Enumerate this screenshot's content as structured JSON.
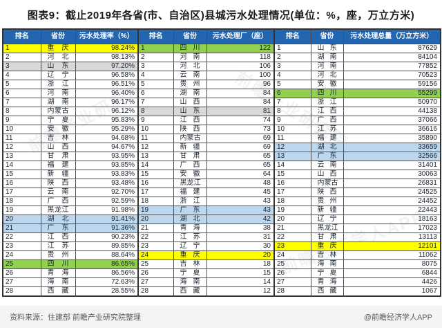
{
  "title": "图表9：截止2019年各省(市、自治区)县城污水处理情况(单位：%，座，万立方米)",
  "columns": {
    "rank": "排名",
    "province": "省份"
  },
  "chart_data": {
    "type": "table",
    "title": "截止2019年各省(市、自治区)县城污水处理情况",
    "units": "%，座，万立方米",
    "tables": {
      "rate": {
        "label": "污水处理率（%）",
        "rows": [
          {
            "rank": 1,
            "province": "重庆",
            "value": "98.24%",
            "hl": "yellow"
          },
          {
            "rank": 2,
            "province": "河北",
            "value": "98.13%"
          },
          {
            "rank": 3,
            "province": "山东",
            "value": "97.20%",
            "hl": "gray"
          },
          {
            "rank": 4,
            "province": "辽宁",
            "value": "96.58%"
          },
          {
            "rank": 5,
            "province": "浙江",
            "value": "96.51%"
          },
          {
            "rank": 6,
            "province": "河南",
            "value": "96.40%"
          },
          {
            "rank": 7,
            "province": "湖南",
            "value": "96.17%"
          },
          {
            "rank": 8,
            "province": "内蒙古",
            "value": "96.12%"
          },
          {
            "rank": 9,
            "province": "宁夏",
            "value": "95.83%"
          },
          {
            "rank": 10,
            "province": "安徽",
            "value": "95.29%"
          },
          {
            "rank": 11,
            "province": "吉林",
            "value": "94.68%"
          },
          {
            "rank": 12,
            "province": "山西",
            "value": "94.67%"
          },
          {
            "rank": 13,
            "province": "甘肃",
            "value": "93.95%"
          },
          {
            "rank": 14,
            "province": "福建",
            "value": "93.85%"
          },
          {
            "rank": 15,
            "province": "新疆",
            "value": "93.83%"
          },
          {
            "rank": 16,
            "province": "陕西",
            "value": "93.48%"
          },
          {
            "rank": 17,
            "province": "云南",
            "value": "92.70%"
          },
          {
            "rank": 18,
            "province": "广西",
            "value": "92.59%"
          },
          {
            "rank": 19,
            "province": "黑龙江",
            "value": "91.98%"
          },
          {
            "rank": 20,
            "province": "湖北",
            "value": "91.41%",
            "hl": "blue"
          },
          {
            "rank": 21,
            "province": "广东",
            "value": "91.36%",
            "hl": "blue"
          },
          {
            "rank": 22,
            "province": "江西",
            "value": "90.23%"
          },
          {
            "rank": 23,
            "province": "江苏",
            "value": "89.85%"
          },
          {
            "rank": 24,
            "province": "贵州",
            "value": "88.64%"
          },
          {
            "rank": 25,
            "province": "四川",
            "value": "86.65%",
            "hl": "green"
          },
          {
            "rank": 26,
            "province": "青海",
            "value": "86.56%"
          },
          {
            "rank": 27,
            "province": "海南",
            "value": "72.63%"
          },
          {
            "rank": 28,
            "province": "西藏",
            "value": "28.55%"
          }
        ]
      },
      "plants": {
        "label": "污水处理厂（座）",
        "rows": [
          {
            "rank": 1,
            "province": "四川",
            "value": 122,
            "hl": "green"
          },
          {
            "rank": 2,
            "province": "河南",
            "value": 118
          },
          {
            "rank": 3,
            "province": "河北",
            "value": 106
          },
          {
            "rank": 4,
            "province": "云南",
            "value": 100
          },
          {
            "rank": 5,
            "province": "贵州",
            "value": 96
          },
          {
            "rank": 6,
            "province": "湖南",
            "value": 84
          },
          {
            "rank": 7,
            "province": "山西",
            "value": 84
          },
          {
            "rank": 8,
            "province": "山东",
            "value": 81,
            "hl": "gray"
          },
          {
            "rank": 9,
            "province": "江西",
            "value": 74
          },
          {
            "rank": 10,
            "province": "陕西",
            "value": 73
          },
          {
            "rank": 11,
            "province": "内蒙古",
            "value": 69
          },
          {
            "rank": 12,
            "province": "新疆",
            "value": 69
          },
          {
            "rank": 13,
            "province": "甘肃",
            "value": 65
          },
          {
            "rank": 14,
            "province": "广西",
            "value": 65
          },
          {
            "rank": 15,
            "province": "安徽",
            "value": 64
          },
          {
            "rank": 16,
            "province": "黑龙江",
            "value": 48
          },
          {
            "rank": 17,
            "province": "福建",
            "value": 45
          },
          {
            "rank": 18,
            "province": "浙江",
            "value": 43
          },
          {
            "rank": 19,
            "province": "广东",
            "value": 43,
            "hl": "blue"
          },
          {
            "rank": 20,
            "province": "湖北",
            "value": 42,
            "hl": "blue"
          },
          {
            "rank": 21,
            "province": "青海",
            "value": 38
          },
          {
            "rank": 22,
            "province": "江苏",
            "value": 31
          },
          {
            "rank": 23,
            "province": "辽宁",
            "value": 30
          },
          {
            "rank": 24,
            "province": "重庆",
            "value": 20,
            "hl": "yellow"
          },
          {
            "rank": 25,
            "province": "吉林",
            "value": 18
          },
          {
            "rank": 26,
            "province": "宁夏",
            "value": 15
          },
          {
            "rank": 27,
            "province": "海南",
            "value": 14
          },
          {
            "rank": 28,
            "province": "西藏",
            "value": 12
          }
        ]
      },
      "volume": {
        "label": "污水处理总量（万立方米）",
        "rows": [
          {
            "rank": 1,
            "province": "山东",
            "value": 87629
          },
          {
            "rank": 2,
            "province": "湖南",
            "value": 84104
          },
          {
            "rank": 3,
            "province": "河南",
            "value": 77852
          },
          {
            "rank": 4,
            "province": "河北",
            "value": 70523
          },
          {
            "rank": 5,
            "province": "安徽",
            "value": 59156
          },
          {
            "rank": 6,
            "province": "四川",
            "value": 55299,
            "hl": "green"
          },
          {
            "rank": 7,
            "province": "浙江",
            "value": 50970
          },
          {
            "rank": 8,
            "province": "江西",
            "value": 44138
          },
          {
            "rank": 9,
            "province": "广西",
            "value": 37066
          },
          {
            "rank": 10,
            "province": "江苏",
            "value": 36616
          },
          {
            "rank": 11,
            "province": "福建",
            "value": 35890
          },
          {
            "rank": 12,
            "province": "湖北",
            "value": 33659,
            "hl": "blue"
          },
          {
            "rank": 13,
            "province": "广东",
            "value": 32566,
            "hl": "blue"
          },
          {
            "rank": 14,
            "province": "云南",
            "value": 31401
          },
          {
            "rank": 15,
            "province": "山西",
            "value": 30063
          },
          {
            "rank": 16,
            "province": "内蒙古",
            "value": 26831
          },
          {
            "rank": 17,
            "province": "陕西",
            "value": 24525
          },
          {
            "rank": 18,
            "province": "贵州",
            "value": 24452
          },
          {
            "rank": 19,
            "province": "新疆",
            "value": 22443
          },
          {
            "rank": 20,
            "province": "辽宁",
            "value": 18163
          },
          {
            "rank": 21,
            "province": "黑龙江",
            "value": 17023
          },
          {
            "rank": 22,
            "province": "甘肃",
            "value": 13113
          },
          {
            "rank": 23,
            "province": "重庆",
            "value": 12101,
            "hl": "yellow"
          },
          {
            "rank": 24,
            "province": "吉林",
            "value": 11062
          },
          {
            "rank": 25,
            "province": "海南",
            "value": 8075
          },
          {
            "rank": 26,
            "province": "宁夏",
            "value": 6844
          },
          {
            "rank": 27,
            "province": "青海",
            "value": 4426
          },
          {
            "rank": 28,
            "province": "西藏",
            "value": 1067
          }
        ]
      }
    }
  },
  "footer": {
    "source": "资料来源：住建部 前瞻产业研究院整理",
    "brand": "@前瞻经济学人APP"
  },
  "watermarks": [
    "前瞻产业研究院",
    "前瞻产业研究院",
    "前瞻经济学人APP"
  ],
  "colors": {
    "header_bg": "#2365AF",
    "header_text": "#FFFFFF",
    "highlight_yellow": "#FFFF00",
    "highlight_green": "#92D050",
    "highlight_blue": "#BDD7EE",
    "highlight_gray": "#D9D9D9",
    "border": "#4D4D4D",
    "footer_bg": "#F4F4F4",
    "footer_text": "#595959"
  }
}
